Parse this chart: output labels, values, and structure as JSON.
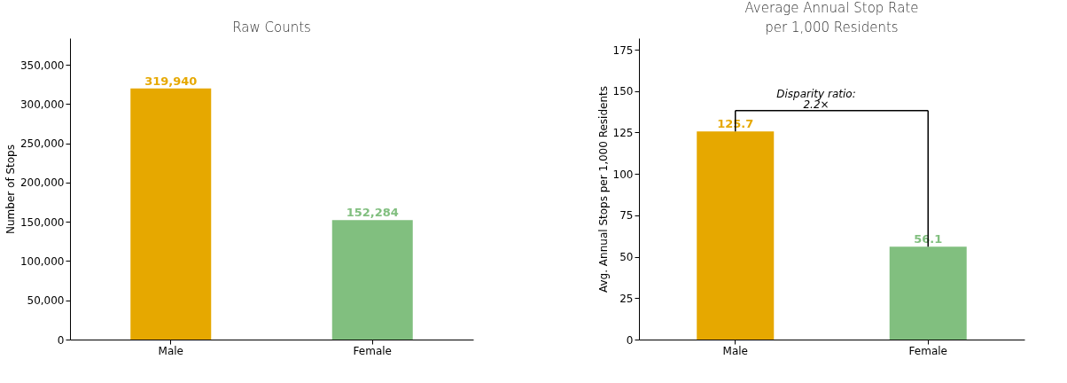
{
  "chart_data": [
    {
      "type": "bar",
      "title": "Raw Counts",
      "ylabel": "Number of Stops",
      "categories": [
        "Male",
        "Female"
      ],
      "values": [
        319940,
        152284
      ],
      "colors": [
        "#e6a800",
        "#81bf7f"
      ],
      "value_labels": [
        "319,940",
        "152,284"
      ],
      "ylim": [
        0,
        384000
      ],
      "yticks": [
        {
          "value": 0,
          "label": "0"
        },
        {
          "value": 50000,
          "label": "50,000"
        },
        {
          "value": 100000,
          "label": "100,000"
        },
        {
          "value": 150000,
          "label": "150,000"
        },
        {
          "value": 200000,
          "label": "200,000"
        },
        {
          "value": 250000,
          "label": "250,000"
        },
        {
          "value": 300000,
          "label": "300,000"
        },
        {
          "value": 350000,
          "label": "350,000"
        }
      ],
      "grid": false
    },
    {
      "type": "bar",
      "title": "Average Annual Stop Rate\nper 1,000 Residents",
      "ylabel": "Avg. Annual Stops per 1,000 Residents",
      "categories": [
        "Male",
        "Female"
      ],
      "values": [
        125.7,
        56.1
      ],
      "colors": [
        "#e6a800",
        "#81bf7f"
      ],
      "data_labels": true,
      "ylim": [
        0,
        182
      ],
      "yticks": [
        0,
        25,
        50,
        75,
        100,
        125,
        150,
        175
      ],
      "annotations": [
        "Disparity ratio:\n2.2×"
      ],
      "grid": false
    }
  ]
}
